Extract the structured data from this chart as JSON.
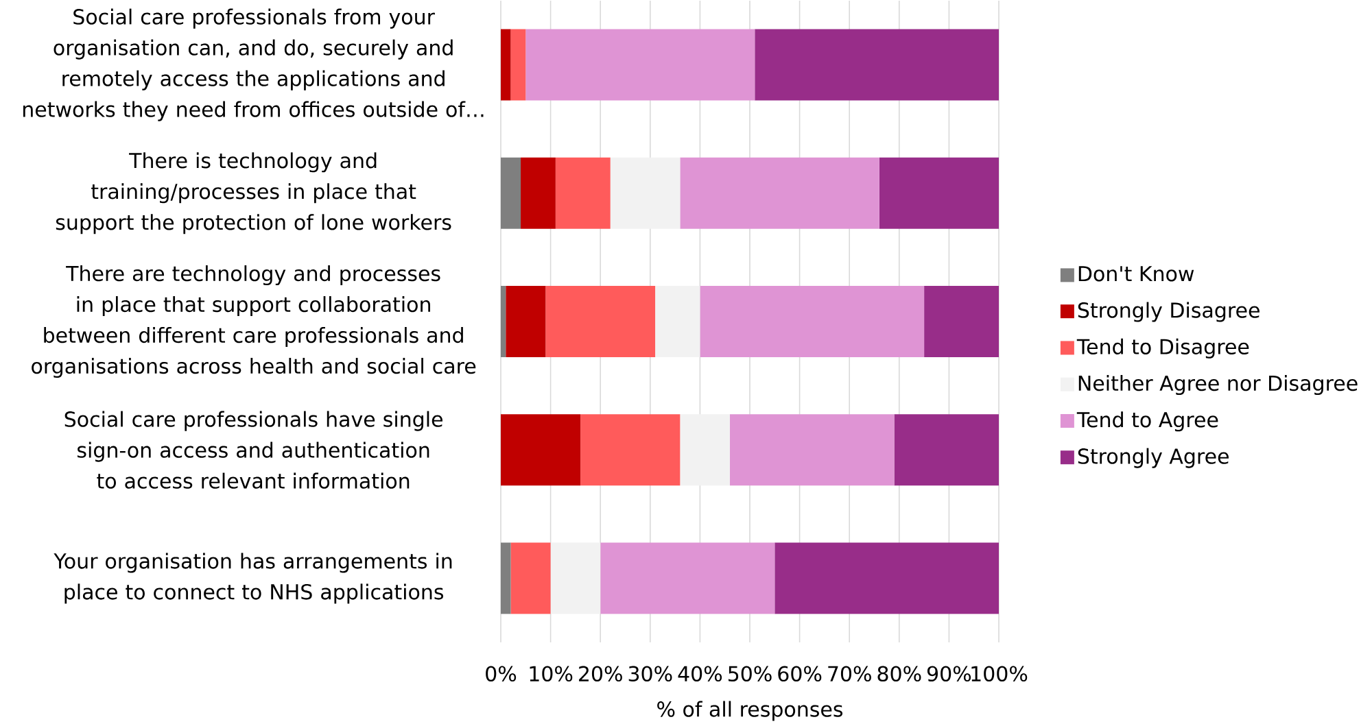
{
  "chart_data": {
    "type": "bar",
    "orientation": "horizontal",
    "stacked": true,
    "xlabel": "% of all responses",
    "categories": [
      "Social care professionals from your organisation can, and do, securely and remotely access the applications and networks they need from offices outside of…",
      "There is technology and training/processes in place that support the protection of lone workers",
      "There are technology and processes in place that support collaboration between different care professionals and organisations across health and social care",
      "Social care professionals have single sign-on access and authentication to access relevant information",
      "Your organisation has arrangements in place to connect to NHS applications"
    ],
    "series": [
      {
        "name": "Don't Know",
        "color": "#7f7f7f",
        "values": [
          0,
          4,
          1,
          0,
          2
        ]
      },
      {
        "name": "Strongly Disagree",
        "color": "#c00000",
        "values": [
          2,
          7,
          8,
          16,
          0
        ]
      },
      {
        "name": "Tend to Disagree",
        "color": "#ff5b5b",
        "values": [
          3,
          11,
          22,
          20,
          8
        ]
      },
      {
        "name": "Neither Agree nor Disagree",
        "color": "#f2f2f2",
        "values": [
          0,
          14,
          9,
          10,
          10
        ]
      },
      {
        "name": "Tend to Agree",
        "color": "#df94d4",
        "values": [
          46,
          40,
          45,
          33,
          35
        ]
      },
      {
        "name": "Strongly Agree",
        "color": "#982d89",
        "values": [
          49,
          24,
          15,
          21,
          45
        ]
      }
    ],
    "xlim": [
      0,
      100
    ],
    "xticks": [
      {
        "value": 0,
        "label": "0%"
      },
      {
        "value": 10,
        "label": "10%"
      },
      {
        "value": 20,
        "label": "20%"
      },
      {
        "value": 30,
        "label": "30%"
      },
      {
        "value": 40,
        "label": "40%"
      },
      {
        "value": 50,
        "label": "50%"
      },
      {
        "value": 60,
        "label": "60%"
      },
      {
        "value": 70,
        "label": "70%"
      },
      {
        "value": 80,
        "label": "80%"
      },
      {
        "value": 90,
        "label": "90%"
      },
      {
        "value": 100,
        "label": "100%"
      }
    ],
    "grid": "x",
    "legend": "right"
  }
}
